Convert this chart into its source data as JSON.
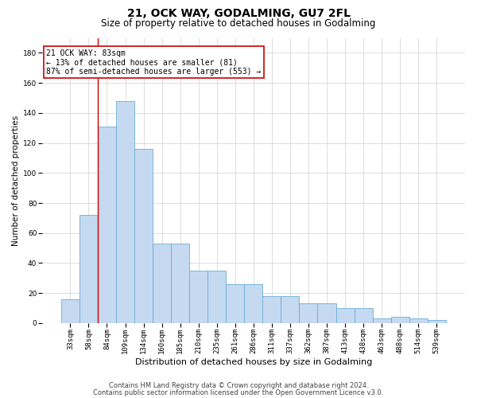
{
  "title1": "21, OCK WAY, GODALMING, GU7 2FL",
  "title2": "Size of property relative to detached houses in Godalming",
  "xlabel": "Distribution of detached houses by size in Godalming",
  "ylabel": "Number of detached properties",
  "categories": [
    "33sqm",
    "58sqm",
    "84sqm",
    "109sqm",
    "134sqm",
    "160sqm",
    "185sqm",
    "210sqm",
    "235sqm",
    "261sqm",
    "286sqm",
    "311sqm",
    "337sqm",
    "362sqm",
    "387sqm",
    "413sqm",
    "438sqm",
    "463sqm",
    "488sqm",
    "514sqm",
    "539sqm"
  ],
  "values": [
    16,
    72,
    131,
    148,
    116,
    53,
    53,
    35,
    35,
    26,
    26,
    18,
    18,
    13,
    13,
    10,
    10,
    3,
    4,
    3,
    2
  ],
  "bar_color": "#c5d9f0",
  "bar_edge_color": "#6baed6",
  "grid_color": "#d0d0d0",
  "background_color": "#ffffff",
  "annotation_box_color": "#ffffff",
  "annotation_border_color": "#cc0000",
  "vline_color": "#cc0000",
  "vline_x": 1.5,
  "annotation_text1": "21 OCK WAY: 83sqm",
  "annotation_text2": "← 13% of detached houses are smaller (81)",
  "annotation_text3": "87% of semi-detached houses are larger (553) →",
  "ylim": [
    0,
    190
  ],
  "yticks": [
    0,
    20,
    40,
    60,
    80,
    100,
    120,
    140,
    160,
    180
  ],
  "footer1": "Contains HM Land Registry data © Crown copyright and database right 2024.",
  "footer2": "Contains public sector information licensed under the Open Government Licence v3.0.",
  "title1_fontsize": 10,
  "title2_fontsize": 8.5,
  "xlabel_fontsize": 8,
  "ylabel_fontsize": 7.5,
  "tick_fontsize": 6.5,
  "annotation_fontsize": 7,
  "footer_fontsize": 6
}
